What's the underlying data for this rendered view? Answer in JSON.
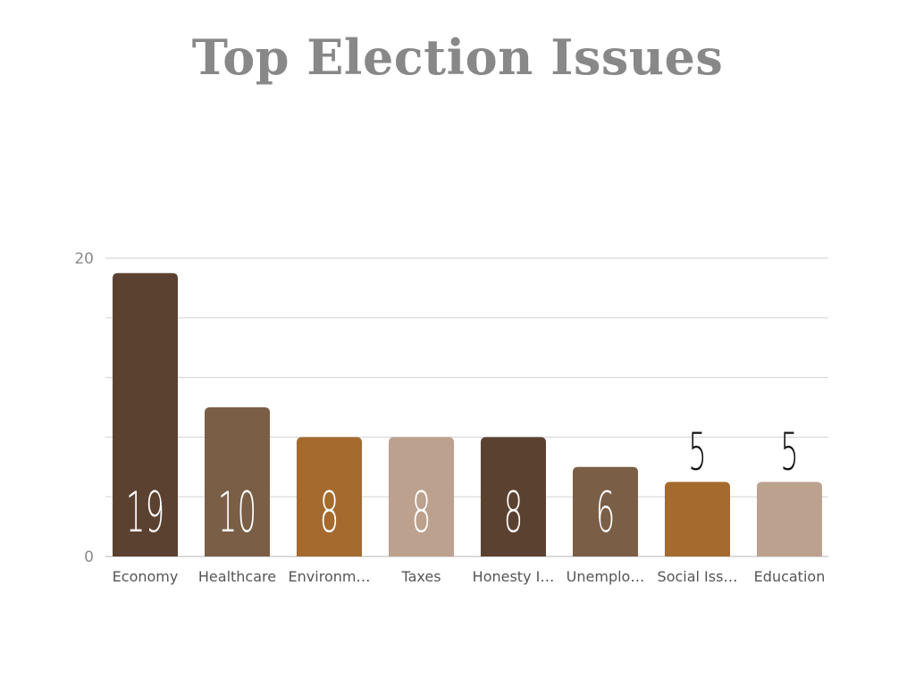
{
  "chart_data": {
    "type": "bar",
    "title": "Top Election Issues",
    "categories": [
      "Economy",
      "Healthcare",
      "Environm…",
      "Taxes",
      "Honesty I…",
      "Unemplo…",
      "Social Iss…",
      "Education"
    ],
    "values": [
      19,
      10,
      8,
      8,
      8,
      6,
      5,
      5
    ],
    "ylim": [
      0,
      20
    ],
    "y_ticks": [
      "0",
      "20"
    ],
    "gridlines": 5,
    "bar_colors": [
      "#5b4230",
      "#7a5e45",
      "#a46a2e",
      "#bca18e",
      "#5b4230",
      "#7a5e45",
      "#a46a2e",
      "#bca18e"
    ],
    "label_inside_color": "#ffffff",
    "label_outside_color": "#111111",
    "xlabel": "",
    "ylabel": ""
  }
}
